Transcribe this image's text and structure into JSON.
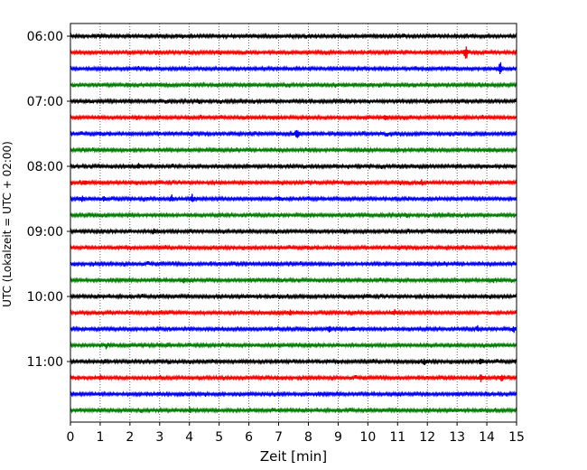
{
  "chart_data": {
    "type": "line",
    "title": "",
    "xlabel": "Zeit  [min]",
    "ylabel": "UTC (Lokalzeit = UTC + 02:00)",
    "xlim": [
      0,
      15
    ],
    "x_ticks": [
      "0",
      "1",
      "2",
      "3",
      "4",
      "5",
      "6",
      "7",
      "8",
      "9",
      "10",
      "11",
      "12",
      "13",
      "14",
      "15"
    ],
    "y_tick_labels": [
      "06:00",
      "07:00",
      "08:00",
      "09:00",
      "10:00",
      "11:00"
    ],
    "grid": "vertical dotted at each minute",
    "row_interval_minutes": 15,
    "colors": [
      "#000000",
      "#ff0000",
      "#0000ff",
      "#008000"
    ],
    "traces": [
      {
        "start": "06:00",
        "color": "#000000",
        "events": []
      },
      {
        "start": "06:15",
        "color": "#ff0000",
        "events": [
          {
            "t": 13.3,
            "amp": 12
          }
        ]
      },
      {
        "start": "06:30",
        "color": "#0000ff",
        "events": [
          {
            "t": 14.45,
            "amp": 10
          }
        ]
      },
      {
        "start": "06:45",
        "color": "#008000",
        "events": []
      },
      {
        "start": "07:00",
        "color": "#000000",
        "events": []
      },
      {
        "start": "07:15",
        "color": "#ff0000",
        "events": [
          {
            "t": 10.6,
            "amp": 3
          }
        ]
      },
      {
        "start": "07:30",
        "color": "#0000ff",
        "events": [
          {
            "t": 7.6,
            "amp": 8
          }
        ]
      },
      {
        "start": "07:45",
        "color": "#008000",
        "events": []
      },
      {
        "start": "08:00",
        "color": "#000000",
        "events": [
          {
            "t": 2.3,
            "amp": 3
          }
        ]
      },
      {
        "start": "08:15",
        "color": "#ff0000",
        "events": [
          {
            "t": 0.5,
            "amp": 3
          },
          {
            "t": 11.8,
            "amp": 3
          }
        ]
      },
      {
        "start": "08:30",
        "color": "#0000ff",
        "events": [
          {
            "t": 0.4,
            "amp": 4
          },
          {
            "t": 1.1,
            "amp": 4
          },
          {
            "t": 3.4,
            "amp": 4
          },
          {
            "t": 4.1,
            "amp": 5
          },
          {
            "t": 7.0,
            "amp": 4
          }
        ]
      },
      {
        "start": "08:45",
        "color": "#008000",
        "events": []
      },
      {
        "start": "09:00",
        "color": "#000000",
        "events": [
          {
            "t": 2.8,
            "amp": 4
          }
        ]
      },
      {
        "start": "09:15",
        "color": "#ff0000",
        "events": []
      },
      {
        "start": "09:30",
        "color": "#0000ff",
        "events": []
      },
      {
        "start": "09:45",
        "color": "#008000",
        "events": [
          {
            "t": 3.8,
            "amp": 3
          },
          {
            "t": 14.2,
            "amp": 3
          }
        ]
      },
      {
        "start": "10:00",
        "color": "#000000",
        "events": []
      },
      {
        "start": "10:15",
        "color": "#ff0000",
        "events": [
          {
            "t": 7.4,
            "amp": 4
          },
          {
            "t": 10.9,
            "amp": 3
          }
        ]
      },
      {
        "start": "10:30",
        "color": "#0000ff",
        "events": [
          {
            "t": 8.7,
            "amp": 4
          },
          {
            "t": 9.5,
            "amp": 4
          },
          {
            "t": 13.7,
            "amp": 4
          },
          {
            "t": 14.9,
            "amp": 4
          }
        ]
      },
      {
        "start": "10:45",
        "color": "#008000",
        "events": [
          {
            "t": 1.2,
            "amp": 3
          }
        ]
      },
      {
        "start": "11:00",
        "color": "#000000",
        "events": [
          {
            "t": 11.9,
            "amp": 4
          },
          {
            "t": 13.8,
            "amp": 6
          }
        ]
      },
      {
        "start": "11:15",
        "color": "#ff0000",
        "events": [
          {
            "t": 1.0,
            "amp": 3
          },
          {
            "t": 13.8,
            "amp": 5
          },
          {
            "t": 14.5,
            "amp": 4
          }
        ]
      },
      {
        "start": "11:30",
        "color": "#0000ff",
        "events": []
      },
      {
        "start": "11:45",
        "color": "#008000",
        "events": [
          {
            "t": 4.0,
            "amp": 3
          }
        ]
      }
    ]
  }
}
